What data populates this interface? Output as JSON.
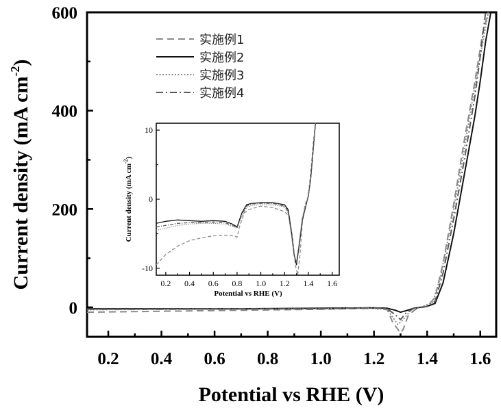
{
  "chart_data": [
    {
      "type": "line",
      "xlabel": "Potential  vs RHE (V)",
      "ylabel": "Current density (mA cm",
      "ylabel_sup": "-2",
      "ylabel_close": ")",
      "xlim": [
        0.12,
        1.66
      ],
      "ylim": [
        -60,
        600
      ],
      "xticks": [
        0.2,
        0.4,
        0.6,
        0.8,
        1.0,
        1.2,
        1.4,
        1.6
      ],
      "xtick_labels": [
        "0.2",
        "0.4",
        "0.6",
        "0.8",
        "1.0",
        "1.2",
        "1.4",
        "1.6"
      ],
      "yticks": [
        0,
        200,
        400,
        600
      ],
      "ytick_labels": [
        "0",
        "200",
        "400",
        "600"
      ],
      "grid": false,
      "legend_position": "top-left",
      "series": [
        {
          "name": "实施例1",
          "style": "dashed",
          "color": "#8a8a8a",
          "x": [
            0.12,
            0.4,
            0.7,
            1.0,
            1.2,
            1.25,
            1.27,
            1.29,
            1.3,
            1.31,
            1.33,
            1.36,
            1.4,
            1.43,
            1.46,
            1.5,
            1.54,
            1.58,
            1.61,
            1.63
          ],
          "y": [
            -10,
            -8,
            -6,
            -4,
            -2,
            -5,
            -30,
            -45,
            -52,
            -45,
            -15,
            -3,
            2,
            20,
            90,
            210,
            340,
            460,
            560,
            600
          ]
        },
        {
          "name": "实施例2",
          "style": "solid",
          "color": "#111111",
          "x": [
            0.12,
            0.4,
            0.7,
            1.0,
            1.2,
            1.25,
            1.28,
            1.3,
            1.32,
            1.35,
            1.4,
            1.43,
            1.46,
            1.5,
            1.54,
            1.58,
            1.6,
            1.62,
            1.64
          ],
          "y": [
            -3,
            -3,
            -3,
            -2,
            -1,
            -2,
            -6,
            -10,
            -7,
            -2,
            2,
            8,
            50,
            150,
            270,
            390,
            460,
            540,
            600
          ]
        },
        {
          "name": "实施例3",
          "style": "dotted",
          "color": "#8a8a8a",
          "x": [
            0.12,
            0.4,
            0.7,
            1.0,
            1.2,
            1.25,
            1.27,
            1.29,
            1.31,
            1.34,
            1.38,
            1.42,
            1.45,
            1.49,
            1.53,
            1.57,
            1.6,
            1.63
          ],
          "y": [
            -5,
            -4,
            -4,
            -3,
            -2,
            -4,
            -20,
            -35,
            -25,
            -5,
            1,
            10,
            60,
            170,
            290,
            420,
            510,
            600
          ]
        },
        {
          "name": "实施例4",
          "style": "dash-dot",
          "color": "#5a5a5a",
          "x": [
            0.12,
            0.4,
            0.7,
            1.0,
            1.2,
            1.25,
            1.28,
            1.3,
            1.32,
            1.35,
            1.4,
            1.43,
            1.46,
            1.5,
            1.54,
            1.58,
            1.6,
            1.62
          ],
          "y": [
            -4,
            -4,
            -3,
            -3,
            -1,
            -3,
            -15,
            -25,
            -12,
            -2,
            2,
            12,
            70,
            180,
            300,
            430,
            510,
            600
          ]
        }
      ]
    },
    {
      "type": "line",
      "inset": true,
      "xlabel": "Potential  vs RHE (V)",
      "ylabel": "Current density (mA cm",
      "ylabel_sup": "-2",
      "ylabel_close": ")",
      "xlim": [
        0.12,
        1.66
      ],
      "ylim": [
        -11,
        11
      ],
      "xticks": [
        0.2,
        0.4,
        0.6,
        0.8,
        1.0,
        1.2,
        1.4,
        1.6
      ],
      "xtick_labels": [
        "0.2",
        "0.4",
        "0.6",
        "0.8",
        "1.0",
        "1.2",
        "1.4",
        "1.6"
      ],
      "yticks": [
        -10,
        0,
        10
      ],
      "ytick_labels": [
        "-10",
        "0",
        "10"
      ],
      "grid": false,
      "series": [
        {
          "name": "实施例1",
          "style": "dashed",
          "color": "#8a8a8a",
          "x": [
            0.12,
            0.2,
            0.3,
            0.4,
            0.5,
            0.6,
            0.7,
            0.78,
            0.8,
            0.82,
            0.86,
            0.9,
            1.0,
            1.1,
            1.2,
            1.24,
            1.27,
            1.29,
            1.31,
            1.33,
            1.35,
            1.37,
            1.4,
            1.42,
            1.44,
            1.46
          ],
          "y": [
            -9.5,
            -8,
            -6.8,
            -6,
            -5.6,
            -5.3,
            -5.2,
            -5.3,
            -5.5,
            -4,
            -2,
            -1.5,
            -1,
            -1.2,
            -1.8,
            -2.5,
            -6,
            -9.5,
            -11,
            -8,
            -3,
            -1,
            0.5,
            4,
            8,
            11
          ]
        },
        {
          "name": "实施例2",
          "style": "solid",
          "color": "#111111",
          "x": [
            0.12,
            0.2,
            0.3,
            0.4,
            0.5,
            0.6,
            0.7,
            0.76,
            0.8,
            0.84,
            0.88,
            0.92,
            1.0,
            1.1,
            1.2,
            1.23,
            1.26,
            1.28,
            1.3,
            1.32,
            1.35,
            1.4,
            1.42,
            1.44,
            1.46
          ],
          "y": [
            -3.5,
            -3.2,
            -3,
            -3.1,
            -3.2,
            -3.1,
            -3.2,
            -3.6,
            -4,
            -2,
            -0.8,
            -0.6,
            -0.5,
            -0.5,
            -0.8,
            -1.5,
            -5,
            -8,
            -9.5,
            -7,
            -3,
            0.5,
            3,
            7,
            11
          ]
        },
        {
          "name": "实施例3",
          "style": "dotted",
          "color": "#8a8a8a",
          "x": [
            0.12,
            0.2,
            0.3,
            0.4,
            0.5,
            0.6,
            0.7,
            0.76,
            0.8,
            0.84,
            0.88,
            0.92,
            1.0,
            1.1,
            1.2,
            1.23,
            1.26,
            1.28,
            1.3,
            1.32,
            1.35,
            1.4,
            1.42,
            1.44,
            1.46
          ],
          "y": [
            -4.5,
            -4.2,
            -3.8,
            -3.6,
            -3.5,
            -3.5,
            -3.6,
            -3.9,
            -4.2,
            -2.5,
            -1.2,
            -0.9,
            -0.8,
            -0.8,
            -1.1,
            -2,
            -5.5,
            -8.2,
            -9,
            -6.5,
            -2.5,
            0.4,
            3,
            7,
            11
          ]
        },
        {
          "name": "实施例4",
          "style": "dash-dot",
          "color": "#5a5a5a",
          "x": [
            0.12,
            0.2,
            0.3,
            0.4,
            0.5,
            0.6,
            0.7,
            0.76,
            0.8,
            0.84,
            0.88,
            0.92,
            1.0,
            1.1,
            1.2,
            1.23,
            1.26,
            1.28,
            1.3,
            1.32,
            1.35,
            1.4,
            1.42,
            1.44,
            1.46
          ],
          "y": [
            -4,
            -3.8,
            -3.5,
            -3.4,
            -3.4,
            -3.3,
            -3.4,
            -3.8,
            -4.1,
            -2.2,
            -1,
            -0.7,
            -0.6,
            -0.6,
            -1,
            -1.8,
            -5.2,
            -8,
            -9.2,
            -6.8,
            -2.8,
            0.4,
            3,
            7,
            11
          ]
        }
      ]
    }
  ]
}
